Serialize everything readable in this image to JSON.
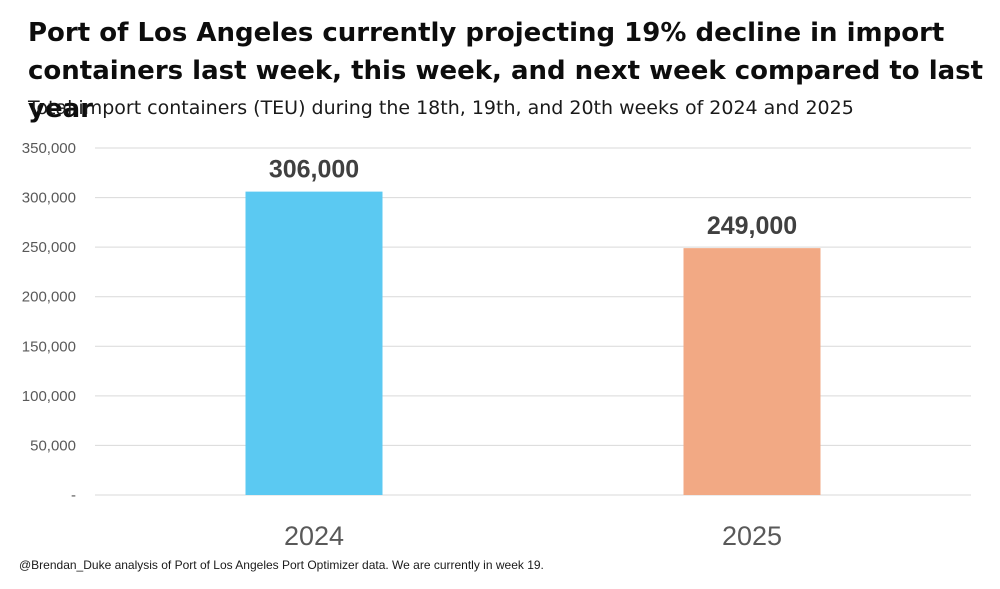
{
  "chart_data": {
    "type": "bar",
    "title": "Port of Los Angeles currently projecting 19% decline in import containers last week, this week, and next week compared to last year",
    "subtitle": "Total import containers (TEU) during the 18th, 19th, and 20th weeks of 2024 and 2025",
    "categories": [
      "2024",
      "2025"
    ],
    "values": [
      306000,
      249000
    ],
    "data_labels": [
      "306,000",
      "249,000"
    ],
    "bar_colors": [
      "#5BC9F2",
      "#F2A984"
    ],
    "ylim": [
      0,
      350000
    ],
    "yticks": [
      0,
      50000,
      100000,
      150000,
      200000,
      250000,
      300000,
      350000
    ],
    "ytick_labels": [
      "-",
      "50,000",
      "100,000",
      "150,000",
      "200,000",
      "250,000",
      "300,000",
      "350,000"
    ],
    "xlabel": "",
    "ylabel": "",
    "grid": true,
    "legend": "none"
  },
  "footnote": "@Brendan_Duke analysis of Port of Los Angeles Port Optimizer data. We are currently in week 19."
}
